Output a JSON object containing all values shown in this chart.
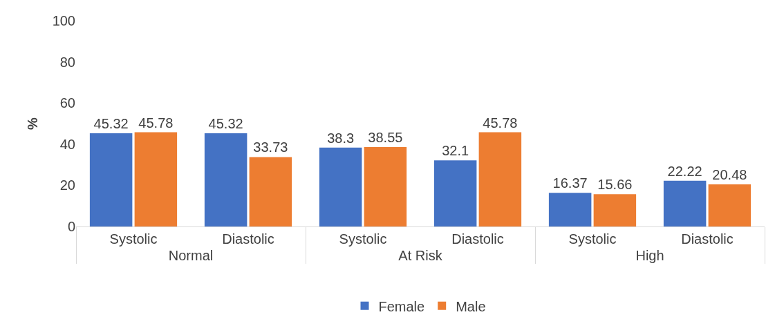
{
  "chart_data": {
    "type": "bar",
    "ylabel": "%",
    "categories": [
      "Systolic",
      "Diastolic",
      "Systolic",
      "Diastolic",
      "Systolic",
      "Diastolic"
    ],
    "annotations": [
      "Normal",
      "At Risk",
      "High"
    ],
    "series": [
      {
        "name": "Female",
        "color": "#4472c4",
        "values": [
          45.32,
          45.32,
          38.3,
          32.1,
          16.37,
          22.22
        ]
      },
      {
        "name": "Male",
        "color": "#ed7d31",
        "values": [
          45.78,
          33.73,
          38.55,
          45.78,
          15.66,
          20.48
        ]
      }
    ],
    "ylim": [
      0,
      100
    ],
    "yticks": [
      0,
      20,
      40,
      60,
      80,
      100
    ],
    "data_labels": true,
    "legend": "bottom"
  }
}
